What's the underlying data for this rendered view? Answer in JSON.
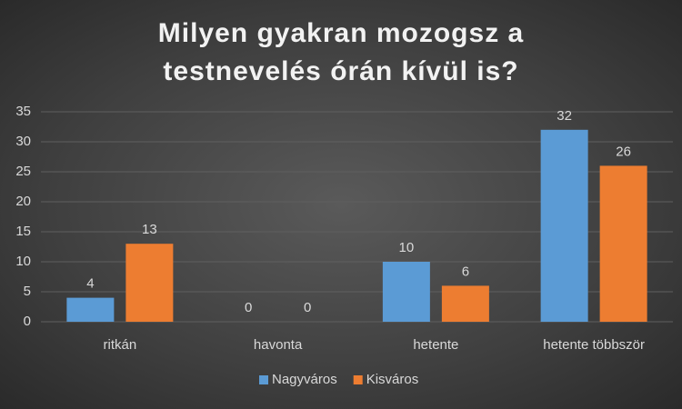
{
  "chart_data": {
    "type": "bar",
    "title": "Milyen gyakran mozogsz a testnevelés órán kívül is?",
    "categories": [
      "ritkán",
      "havonta",
      "hetente",
      "hetente többször"
    ],
    "series": [
      {
        "name": "Nagyváros",
        "color": "#5b9bd5",
        "values": [
          4,
          0,
          10,
          32
        ]
      },
      {
        "name": "Kisváros",
        "color": "#ed7d31",
        "values": [
          13,
          0,
          6,
          26
        ]
      }
    ],
    "ylim": [
      0,
      35
    ],
    "yticks": [
      0,
      5,
      10,
      15,
      20,
      25,
      30,
      35
    ],
    "grid": true,
    "legend": "bottom"
  }
}
